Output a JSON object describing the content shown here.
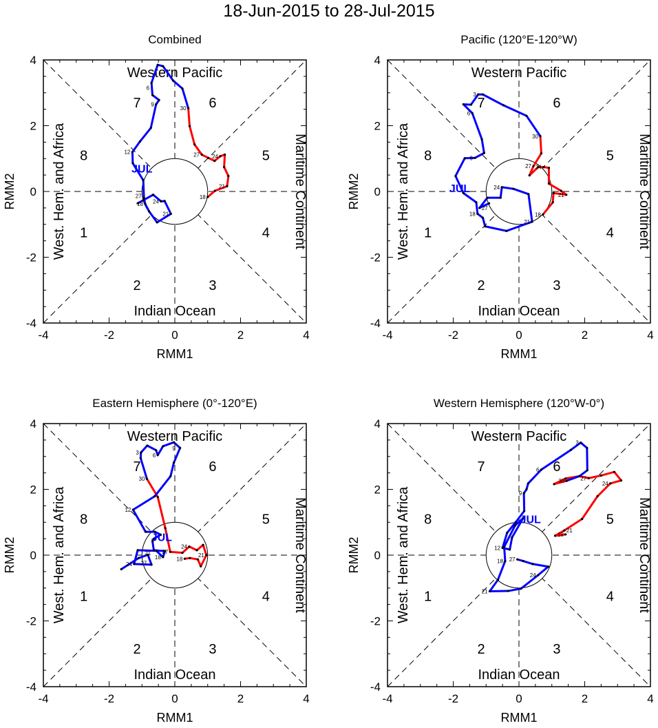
{
  "title": "18-Jun-2015 to 28-Jul-2015",
  "colors": {
    "june": "#ff0000",
    "july": "#0000ff"
  },
  "chart_data": [
    {
      "type": "line",
      "title": "Combined",
      "xlabel": "RMM1",
      "ylabel": "RMM2",
      "xlim": [
        -4,
        4
      ],
      "ylim": [
        -4,
        4
      ],
      "ticks": [
        "-4",
        "-2",
        "0",
        "2",
        "4"
      ],
      "regions": {
        "top": "Western Pacific",
        "bottom": "Indian Ocean",
        "left": "West. Hem. and Africa",
        "right": "Maritime Continent"
      },
      "phases": [
        "1",
        "2",
        "3",
        "4",
        "5",
        "6",
        "7",
        "8"
      ],
      "month_label": "JUL",
      "month_label_pos": [
        -1.0,
        0.7
      ],
      "series": [
        {
          "name": "June",
          "points": [
            [
              1.0,
              -0.17,
              "18"
            ],
            [
              1.22,
              0.02,
              ""
            ],
            [
              1.59,
              0.16,
              "21"
            ],
            [
              1.63,
              0.47,
              ""
            ],
            [
              1.5,
              0.74,
              ""
            ],
            [
              1.52,
              1.12,
              ""
            ],
            [
              1.38,
              1.07,
              "24"
            ],
            [
              1.21,
              0.93,
              ""
            ],
            [
              1.02,
              1.02,
              ""
            ],
            [
              0.82,
              1.12,
              "27"
            ],
            [
              0.6,
              1.43,
              ""
            ],
            [
              0.45,
              1.99,
              ""
            ],
            [
              0.41,
              2.53,
              "30"
            ]
          ]
        },
        {
          "name": "July",
          "points": [
            [
              0.41,
              2.53,
              ""
            ],
            [
              0.23,
              3.13,
              ""
            ],
            [
              -0.05,
              3.37,
              ""
            ],
            [
              -0.36,
              3.81,
              ""
            ],
            [
              -0.52,
              3.85,
              ""
            ],
            [
              -0.71,
              3.3,
              "6"
            ],
            [
              -0.68,
              2.93,
              ""
            ],
            [
              -0.48,
              2.78,
              ""
            ],
            [
              -0.57,
              2.65,
              "9"
            ],
            [
              -0.73,
              1.93,
              ""
            ],
            [
              -1.06,
              1.52,
              ""
            ],
            [
              -1.29,
              1.2,
              "12"
            ],
            [
              -1.28,
              0.86,
              ""
            ],
            [
              -0.96,
              0.34,
              ""
            ],
            [
              -0.94,
              -0.19,
              ""
            ],
            [
              -0.9,
              -0.38,
              "18"
            ],
            [
              -0.78,
              -0.61,
              ""
            ],
            [
              -0.54,
              -0.94,
              ""
            ],
            [
              -0.12,
              -0.68,
              "21"
            ],
            [
              -0.31,
              -0.29,
              ""
            ],
            [
              -0.42,
              -0.3,
              "24"
            ],
            [
              -0.66,
              -0.1,
              ""
            ],
            [
              -0.95,
              -0.26,
              "27"
            ],
            [
              -1.13,
              -0.36,
              ""
            ]
          ]
        }
      ]
    },
    {
      "type": "line",
      "title": "Pacific (120°E-120°W)",
      "xlabel": "RMM1",
      "ylabel": "RMM2",
      "xlim": [
        -4,
        4
      ],
      "ylim": [
        -4,
        4
      ],
      "ticks": [
        "-4",
        "-2",
        "0",
        "2",
        "4"
      ],
      "regions": {
        "top": "Western Pacific",
        "bottom": "Indian Ocean",
        "left": "West. Hem. and Africa",
        "right": "Maritime Continent"
      },
      "phases": [
        "1",
        "2",
        "3",
        "4",
        "5",
        "6",
        "7",
        "8"
      ],
      "month_label": "JUL",
      "month_label_pos": [
        -1.8,
        0.1
      ],
      "series": [
        {
          "name": "June",
          "points": [
            [
              0.73,
              -0.7,
              "18"
            ],
            [
              1.03,
              -0.33,
              ""
            ],
            [
              1.05,
              -0.05,
              ""
            ],
            [
              1.44,
              -0.1,
              "21"
            ],
            [
              1.28,
              0.02,
              ""
            ],
            [
              0.91,
              0.24,
              ""
            ],
            [
              0.91,
              0.72,
              ""
            ],
            [
              0.75,
              0.74,
              "24"
            ],
            [
              0.58,
              0.74,
              ""
            ],
            [
              0.32,
              0.49,
              ""
            ],
            [
              0.44,
              0.77,
              "27"
            ],
            [
              0.68,
              1.16,
              ""
            ],
            [
              0.65,
              1.68,
              "30"
            ]
          ]
        },
        {
          "name": "July",
          "points": [
            [
              0.65,
              1.68,
              ""
            ],
            [
              0.23,
              2.3,
              ""
            ],
            [
              -0.47,
              2.62,
              ""
            ],
            [
              -1.1,
              2.95,
              ""
            ],
            [
              -1.24,
              2.95,
              "3"
            ],
            [
              -1.46,
              2.64,
              ""
            ],
            [
              -1.69,
              2.65,
              ""
            ],
            [
              -1.42,
              2.38,
              "6"
            ],
            [
              -1.13,
              1.59,
              ""
            ],
            [
              -1.06,
              1.17,
              ""
            ],
            [
              -1.34,
              1.02,
              "9"
            ],
            [
              -1.65,
              1.01,
              ""
            ],
            [
              -1.93,
              0.47,
              ""
            ],
            [
              -1.69,
              -0.05,
              ""
            ],
            [
              -1.3,
              -0.33,
              ""
            ],
            [
              -1.26,
              -0.68,
              "18"
            ],
            [
              -1.1,
              -0.8,
              ""
            ],
            [
              -1.03,
              -1.06,
              ""
            ],
            [
              -0.38,
              -1.2,
              ""
            ],
            [
              0.4,
              -0.92,
              "21"
            ],
            [
              0.29,
              -0.08,
              ""
            ],
            [
              -0.17,
              0.08,
              ""
            ],
            [
              -0.52,
              0.13,
              "24"
            ],
            [
              -0.56,
              -0.19,
              ""
            ],
            [
              -0.96,
              -0.19,
              ""
            ],
            [
              -1.2,
              -0.5,
              "27"
            ],
            [
              -0.91,
              -0.36,
              ""
            ]
          ]
        }
      ]
    },
    {
      "type": "line",
      "title": "Eastern Hemisphere (0°-120°E)",
      "xlabel": "RMM1",
      "ylabel": "RMM2",
      "xlim": [
        -4,
        4
      ],
      "ylim": [
        -4,
        4
      ],
      "ticks": [
        "-4",
        "-2",
        "0",
        "2",
        "4"
      ],
      "regions": {
        "top": "Western Pacific",
        "bottom": "Indian Ocean",
        "left": "West. Hem. and Africa",
        "right": "Maritime Continent"
      },
      "phases": [
        "1",
        "2",
        "3",
        "4",
        "5",
        "6",
        "7",
        "8"
      ],
      "month_label": "JUL",
      "month_label_pos": [
        -0.4,
        0.55
      ],
      "series": [
        {
          "name": "June",
          "points": [
            [
              0.3,
              -0.11,
              "18"
            ],
            [
              0.46,
              -0.09,
              ""
            ],
            [
              0.7,
              -0.13,
              ""
            ],
            [
              0.79,
              -0.34,
              ""
            ],
            [
              0.96,
              0.0,
              "21"
            ],
            [
              0.86,
              0.31,
              ""
            ],
            [
              0.67,
              0.15,
              ""
            ],
            [
              0.44,
              0.26,
              "24"
            ],
            [
              0.23,
              0.07,
              ""
            ],
            [
              -0.14,
              0.1,
              "27"
            ],
            [
              -0.29,
              0.82,
              ""
            ],
            [
              -0.52,
              1.77,
              ""
            ],
            [
              -0.85,
              2.32,
              "30"
            ]
          ]
        },
        {
          "name": "July",
          "points": [
            [
              -0.85,
              2.32,
              ""
            ],
            [
              -1.04,
              2.95,
              ""
            ],
            [
              -1.03,
              3.12,
              "3"
            ],
            [
              -0.84,
              3.33,
              ""
            ],
            [
              -0.57,
              3.19,
              ""
            ],
            [
              -0.52,
              3.04,
              "6"
            ],
            [
              -0.36,
              3.31,
              ""
            ],
            [
              -0.03,
              3.43,
              "9"
            ],
            [
              0.16,
              3.26,
              ""
            ],
            [
              -0.03,
              2.81,
              ""
            ],
            [
              -0.13,
              2.4,
              ""
            ],
            [
              -0.61,
              1.79,
              ""
            ],
            [
              -1.27,
              1.38,
              "12"
            ],
            [
              -0.89,
              0.71,
              ""
            ],
            [
              -0.61,
              0.71,
              ""
            ],
            [
              -0.43,
              0.62,
              ""
            ],
            [
              -0.64,
              0.5,
              ""
            ],
            [
              -0.68,
              0.42,
              ""
            ],
            [
              -0.64,
              0.15,
              ""
            ],
            [
              -0.3,
              0.12,
              ""
            ],
            [
              -0.36,
              -0.06,
              "18"
            ],
            [
              -0.56,
              0.13,
              "21"
            ],
            [
              -1.13,
              0.15,
              ""
            ],
            [
              -1.24,
              -0.27,
              "24"
            ],
            [
              -0.71,
              -0.29,
              ""
            ],
            [
              -0.82,
              0.01,
              ""
            ],
            [
              -1.1,
              -0.09,
              "27"
            ],
            [
              -1.63,
              -0.43,
              ""
            ]
          ]
        }
      ]
    },
    {
      "type": "line",
      "title": "Western Hemisphere (120°W-0°)",
      "xlabel": "RMM1",
      "ylabel": "RMM2",
      "xlim": [
        -4,
        4
      ],
      "ylim": [
        -4,
        4
      ],
      "ticks": [
        "-4",
        "-2",
        "0",
        "2",
        "4"
      ],
      "regions": {
        "top": "Western Pacific",
        "bottom": "Indian Ocean",
        "left": "West. Hem. and Africa",
        "right": "Maritime Continent"
      },
      "phases": [
        "1",
        "2",
        "3",
        "4",
        "5",
        "6",
        "7",
        "8"
      ],
      "month_label": "JUL",
      "month_label_pos": [
        0.35,
        1.1
      ],
      "series": [
        {
          "name": "June",
          "points": [
            [
              1.42,
              0.63,
              "18"
            ],
            [
              1.1,
              0.59,
              ""
            ],
            [
              1.38,
              0.75,
              "21"
            ],
            [
              1.92,
              1.1,
              ""
            ],
            [
              2.39,
              1.79,
              ""
            ],
            [
              2.78,
              2.18,
              "24"
            ],
            [
              3.11,
              2.27,
              ""
            ],
            [
              2.9,
              2.53,
              ""
            ],
            [
              2.5,
              2.42,
              ""
            ],
            [
              2.12,
              2.34,
              "27"
            ],
            [
              1.84,
              2.4,
              ""
            ],
            [
              1.42,
              2.33,
              ""
            ],
            [
              1.07,
              2.16,
              ""
            ],
            [
              1.45,
              2.26,
              "30"
            ]
          ]
        },
        {
          "name": "July",
          "points": [
            [
              1.45,
              2.26,
              ""
            ],
            [
              1.84,
              2.4,
              ""
            ],
            [
              2.08,
              2.58,
              ""
            ],
            [
              2.07,
              3.26,
              ""
            ],
            [
              1.88,
              3.42,
              "3"
            ],
            [
              1.58,
              3.2,
              ""
            ],
            [
              0.68,
              2.6,
              "6"
            ],
            [
              0.28,
              2.18,
              ""
            ],
            [
              0.23,
              2.0,
              ""
            ],
            [
              0.15,
              1.88,
              "9"
            ],
            [
              0.16,
              1.34,
              ""
            ],
            [
              -0.1,
              1.0,
              ""
            ],
            [
              -0.36,
              0.68,
              ""
            ],
            [
              -0.5,
              0.22,
              "12"
            ],
            [
              -0.28,
              0.17,
              ""
            ],
            [
              -0.21,
              0.54,
              ""
            ],
            [
              0.13,
              1.13,
              ""
            ],
            [
              -0.12,
              0.9,
              ""
            ],
            [
              -0.45,
              0.25,
              ""
            ],
            [
              -0.42,
              -0.18,
              "18"
            ],
            [
              -0.64,
              -0.75,
              ""
            ],
            [
              -0.89,
              -1.1,
              "21"
            ],
            [
              -0.33,
              -1.09,
              ""
            ],
            [
              0.06,
              -1.02,
              ""
            ],
            [
              0.58,
              -0.61,
              "24"
            ],
            [
              0.89,
              -0.35,
              ""
            ],
            [
              0.42,
              -0.27,
              ""
            ],
            [
              0.13,
              -0.18,
              ""
            ],
            [
              -0.05,
              -0.13,
              "27"
            ]
          ]
        }
      ]
    }
  ]
}
